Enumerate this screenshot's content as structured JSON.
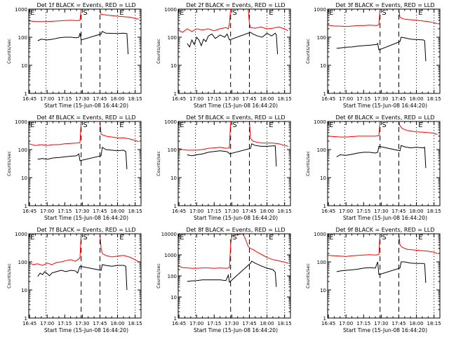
{
  "figure": {
    "colors": {
      "events": "#000000",
      "lld": "#ff0000",
      "axes": "#000000"
    },
    "common": {
      "xlabel": "Start Time (15-Jun-08 16:44:20)",
      "ylabel": "Counts/sec",
      "x_ticks": [
        "16:45",
        "17:00",
        "17:15",
        "17:30",
        "17:45",
        "18:00",
        "18:15"
      ],
      "x_tick_minutes": [
        45,
        60,
        75,
        90,
        105,
        120,
        135
      ],
      "xlim_minutes": [
        44.33,
        140
      ],
      "dotted_lines_minutes": [
        59,
        120,
        135
      ],
      "dashed_lines_minutes": [
        89,
        105
      ],
      "markers": [
        {
          "label": "E",
          "minute": 45
        },
        {
          "label": "S",
          "minute": 90
        },
        {
          "label": "E",
          "minute": 121
        }
      ]
    }
  },
  "chart_data": [
    {
      "type": "line",
      "title": "Det 1f BLACK = Events, RED = LLD",
      "xlabel": "Start Time (15-Jun-08 16:44:20)",
      "ylabel": "Counts/sec",
      "yscale": "log",
      "ylim": [
        1,
        1000
      ],
      "y_ticks": [
        "1",
        "10",
        "100",
        "1000"
      ],
      "series": [
        {
          "name": "LLD",
          "color": "red",
          "x": [
            44.5,
            50,
            60,
            70,
            80,
            86,
            88,
            89,
            105,
            106,
            110,
            120,
            130,
            138
          ],
          "y": [
            380,
            360,
            360,
            380,
            400,
            390,
            400,
            5000,
            5000,
            650,
            620,
            560,
            520,
            440
          ]
        },
        {
          "name": "Events",
          "color": "black",
          "x": [
            52,
            55,
            60,
            65,
            70,
            75,
            80,
            85,
            87,
            88,
            89,
            106,
            107,
            110,
            120,
            125,
            128,
            129
          ],
          "y": [
            75,
            85,
            80,
            85,
            95,
            100,
            100,
            95,
            100,
            140,
            80,
            130,
            160,
            140,
            135,
            140,
            135,
            25
          ]
        }
      ]
    },
    {
      "type": "line",
      "title": "Det 2f BLACK = Events, RED = LLD",
      "xlabel": "Start Time (15-Jun-08 16:44:20)",
      "ylabel": "Counts/sec",
      "yscale": "log",
      "ylim": [
        1,
        1000
      ],
      "y_ticks": [
        "1",
        "10",
        "100",
        "1000"
      ],
      "series": [
        {
          "name": "LLD",
          "color": "red",
          "x": [
            44.5,
            48,
            52,
            56,
            60,
            65,
            70,
            75,
            80,
            85,
            87,
            88,
            89,
            104,
            105,
            106,
            110,
            115,
            120,
            125,
            130,
            135,
            138
          ],
          "y": [
            180,
            150,
            200,
            160,
            200,
            180,
            200,
            170,
            200,
            220,
            200,
            300,
            5000,
            5000,
            300,
            220,
            210,
            230,
            200,
            210,
            230,
            200,
            170
          ]
        },
        {
          "name": "Events",
          "color": "black",
          "x": [
            52,
            54,
            56,
            58,
            60,
            62,
            64,
            66,
            68,
            70,
            73,
            76,
            80,
            84,
            86,
            88,
            106,
            108,
            112,
            116,
            120,
            124,
            127,
            128,
            129
          ],
          "y": [
            60,
            45,
            80,
            55,
            100,
            80,
            50,
            85,
            70,
            110,
            130,
            90,
            120,
            100,
            130,
            80,
            150,
            130,
            110,
            100,
            140,
            110,
            140,
            120,
            25
          ]
        }
      ]
    },
    {
      "type": "line",
      "title": "Det 3f BLACK = Events, RED = LLD",
      "xlabel": "Start Time (15-Jun-08 16:44:20)",
      "ylabel": "Counts/sec",
      "yscale": "log",
      "ylim": [
        1,
        1000
      ],
      "y_ticks": [
        "1",
        "10",
        "100",
        "1000"
      ],
      "series": [
        {
          "name": "LLD",
          "color": "red",
          "x": [
            44.5,
            50,
            55,
            60,
            65,
            70,
            75,
            80,
            86,
            88,
            89,
            105,
            106,
            110,
            115,
            120,
            125,
            130,
            135,
            138
          ],
          "y": [
            270,
            250,
            250,
            240,
            250,
            260,
            260,
            270,
            260,
            280,
            5000,
            5000,
            500,
            440,
            420,
            400,
            380,
            360,
            330,
            300
          ]
        },
        {
          "name": "Events",
          "color": "black",
          "x": [
            52,
            56,
            60,
            65,
            70,
            75,
            80,
            86,
            87,
            88,
            106,
            107,
            110,
            115,
            120,
            126,
            127,
            128
          ],
          "y": [
            40,
            42,
            44,
            45,
            48,
            50,
            52,
            55,
            60,
            35,
            70,
            100,
            95,
            85,
            82,
            80,
            75,
            14
          ]
        }
      ]
    },
    {
      "type": "line",
      "title": "Det 4f BLACK = Events, RED = LLD",
      "xlabel": "Start Time (15-Jun-08 16:44:20)",
      "ylabel": "Counts/sec",
      "yscale": "log",
      "ylim": [
        1,
        1000
      ],
      "y_ticks": [
        "1",
        "10",
        "100",
        "1000"
      ],
      "series": [
        {
          "name": "LLD",
          "color": "red",
          "x": [
            44.5,
            50,
            55,
            60,
            65,
            70,
            75,
            80,
            85,
            88,
            89,
            105,
            106,
            110,
            115,
            120,
            125,
            130,
            135,
            138
          ],
          "y": [
            160,
            140,
            150,
            140,
            150,
            150,
            160,
            165,
            170,
            175,
            5000,
            5000,
            350,
            300,
            280,
            260,
            260,
            240,
            210,
            190
          ]
        },
        {
          "name": "Events",
          "color": "black",
          "x": [
            52,
            56,
            60,
            65,
            70,
            75,
            80,
            85,
            87,
            88,
            106,
            107,
            110,
            115,
            120,
            125,
            127,
            128
          ],
          "y": [
            45,
            48,
            45,
            50,
            52,
            55,
            58,
            60,
            70,
            40,
            60,
            120,
            100,
            95,
            90,
            95,
            85,
            20
          ]
        }
      ]
    },
    {
      "type": "line",
      "title": "Det 5f BLACK = Events, RED = LLD",
      "xlabel": "Start Time (15-Jun-08 16:44:20)",
      "ylabel": "Counts/sec",
      "yscale": "log",
      "ylim": [
        1,
        1000
      ],
      "y_ticks": [
        "1",
        "10",
        "100",
        "1000"
      ],
      "series": [
        {
          "name": "LLD",
          "color": "red",
          "x": [
            44.5,
            48,
            52,
            56,
            60,
            65,
            70,
            75,
            80,
            85,
            88,
            89,
            105,
            106,
            108,
            112,
            116,
            120,
            125,
            130,
            135,
            138
          ],
          "y": [
            110,
            100,
            95,
            95,
            95,
            100,
            110,
            115,
            120,
            110,
            115,
            5000,
            5000,
            250,
            200,
            180,
            170,
            170,
            170,
            160,
            140,
            130
          ]
        },
        {
          "name": "Events",
          "color": "black",
          "x": [
            52,
            56,
            60,
            65,
            70,
            75,
            80,
            85,
            87,
            88,
            106,
            107,
            110,
            115,
            120,
            125,
            127,
            128
          ],
          "y": [
            65,
            60,
            65,
            70,
            80,
            85,
            90,
            85,
            80,
            70,
            110,
            160,
            140,
            130,
            130,
            135,
            135,
            25
          ]
        }
      ]
    },
    {
      "type": "line",
      "title": "Det 6f BLACK = Events, RED = LLD",
      "xlabel": "Start Time (15-Jun-08 16:44:20)",
      "ylabel": "Counts/sec",
      "yscale": "log",
      "ylim": [
        1,
        1000
      ],
      "y_ticks": [
        "1",
        "10",
        "100",
        "1000"
      ],
      "series": [
        {
          "name": "LLD",
          "color": "red",
          "x": [
            44.5,
            50,
            55,
            60,
            65,
            70,
            75,
            80,
            85,
            88,
            89,
            105,
            106,
            108,
            112,
            116,
            120,
            125,
            130,
            135,
            138
          ],
          "y": [
            300,
            290,
            280,
            280,
            290,
            300,
            300,
            300,
            300,
            310,
            5000,
            5000,
            700,
            560,
            480,
            450,
            430,
            420,
            400,
            380,
            340
          ]
        },
        {
          "name": "Events",
          "color": "black",
          "x": [
            52,
            55,
            60,
            65,
            70,
            75,
            80,
            85,
            87,
            88,
            106,
            107,
            110,
            115,
            120,
            126,
            127,
            128
          ],
          "y": [
            55,
            65,
            62,
            68,
            75,
            80,
            80,
            75,
            80,
            130,
            90,
            140,
            125,
            115,
            120,
            115,
            120,
            22
          ]
        }
      ]
    },
    {
      "type": "line",
      "title": "Det 7f BLACK = Events, RED = LLD",
      "xlabel": "Start Time (15-Jun-08 16:44:20)",
      "ylabel": "Counts/sec",
      "yscale": "log",
      "ylim": [
        1,
        1000
      ],
      "y_ticks": [
        "1",
        "10",
        "100",
        "1000"
      ],
      "series": [
        {
          "name": "LLD",
          "color": "red",
          "x": [
            44.5,
            48,
            52,
            56,
            60,
            64,
            68,
            72,
            76,
            80,
            84,
            86,
            88,
            89,
            105,
            106,
            107,
            110,
            115,
            120,
            125,
            130,
            135,
            138
          ],
          "y": [
            95,
            80,
            85,
            75,
            90,
            80,
            95,
            100,
            110,
            120,
            105,
            120,
            140,
            5000,
            5000,
            300,
            200,
            170,
            150,
            160,
            170,
            150,
            120,
            100
          ]
        },
        {
          "name": "Events",
          "color": "black",
          "x": [
            52,
            54,
            56,
            58,
            60,
            62,
            64,
            68,
            72,
            76,
            80,
            84,
            86,
            87,
            88,
            106,
            107,
            110,
            115,
            120,
            125,
            127,
            128
          ],
          "y": [
            30,
            40,
            35,
            45,
            38,
            32,
            40,
            45,
            50,
            45,
            50,
            48,
            40,
            55,
            70,
            50,
            80,
            75,
            70,
            75,
            75,
            70,
            10
          ]
        }
      ]
    },
    {
      "type": "line",
      "title": "Det 8f BLACK = Events, RED = LLD",
      "xlabel": "Start Time (15-Jun-08 16:44:20)",
      "ylabel": "Counts/sec",
      "yscale": "log",
      "ylim": [
        1,
        10000
      ],
      "y_ticks": [
        "1",
        "10",
        "100",
        "1000",
        "10000"
      ],
      "series": [
        {
          "name": "LLD",
          "color": "red",
          "x": [
            44.5,
            48,
            52,
            56,
            60,
            65,
            70,
            75,
            80,
            85,
            88,
            89,
            90,
            99,
            100,
            102,
            104,
            106,
            108,
            112,
            116,
            120,
            125,
            130,
            135,
            138
          ],
          "y": [
            300,
            250,
            240,
            230,
            230,
            240,
            240,
            230,
            240,
            230,
            240,
            3000,
            8000,
            12000,
            9000,
            5000,
            2500,
            2000,
            1800,
            1300,
            1000,
            750,
            600,
            520,
            450,
            400
          ]
        },
        {
          "name": "Events",
          "color": "black",
          "x": [
            52,
            56,
            60,
            65,
            70,
            75,
            80,
            85,
            87,
            88,
            106,
            107,
            110,
            115,
            120,
            125,
            127,
            128
          ],
          "y": [
            55,
            58,
            60,
            65,
            65,
            65,
            65,
            60,
            110,
            50,
            400,
            500,
            400,
            300,
            230,
            200,
            150,
            30
          ]
        }
      ]
    },
    {
      "type": "line",
      "title": "Det 9f BLACK = Events, RED = LLD",
      "xlabel": "Start Time (15-Jun-08 16:44:20)",
      "ylabel": "Counts/sec",
      "yscale": "log",
      "ylim": [
        1,
        1000
      ],
      "y_ticks": [
        "1",
        "10",
        "100",
        "1000"
      ],
      "series": [
        {
          "name": "LLD",
          "color": "red",
          "x": [
            44.5,
            50,
            55,
            60,
            65,
            70,
            75,
            80,
            85,
            88,
            89,
            105,
            106,
            108,
            112,
            116,
            120,
            125,
            130,
            135,
            138
          ],
          "y": [
            170,
            165,
            160,
            155,
            165,
            170,
            175,
            180,
            175,
            180,
            5000,
            5000,
            400,
            330,
            280,
            270,
            260,
            250,
            240,
            220,
            200
          ]
        },
        {
          "name": "Events",
          "color": "black",
          "x": [
            52,
            56,
            60,
            65,
            70,
            75,
            80,
            85,
            87,
            88,
            106,
            107,
            110,
            115,
            120,
            126,
            127,
            128
          ],
          "y": [
            45,
            48,
            50,
            52,
            55,
            60,
            62,
            60,
            100,
            35,
            60,
            100,
            100,
            90,
            88,
            88,
            85,
            18
          ]
        }
      ]
    }
  ]
}
